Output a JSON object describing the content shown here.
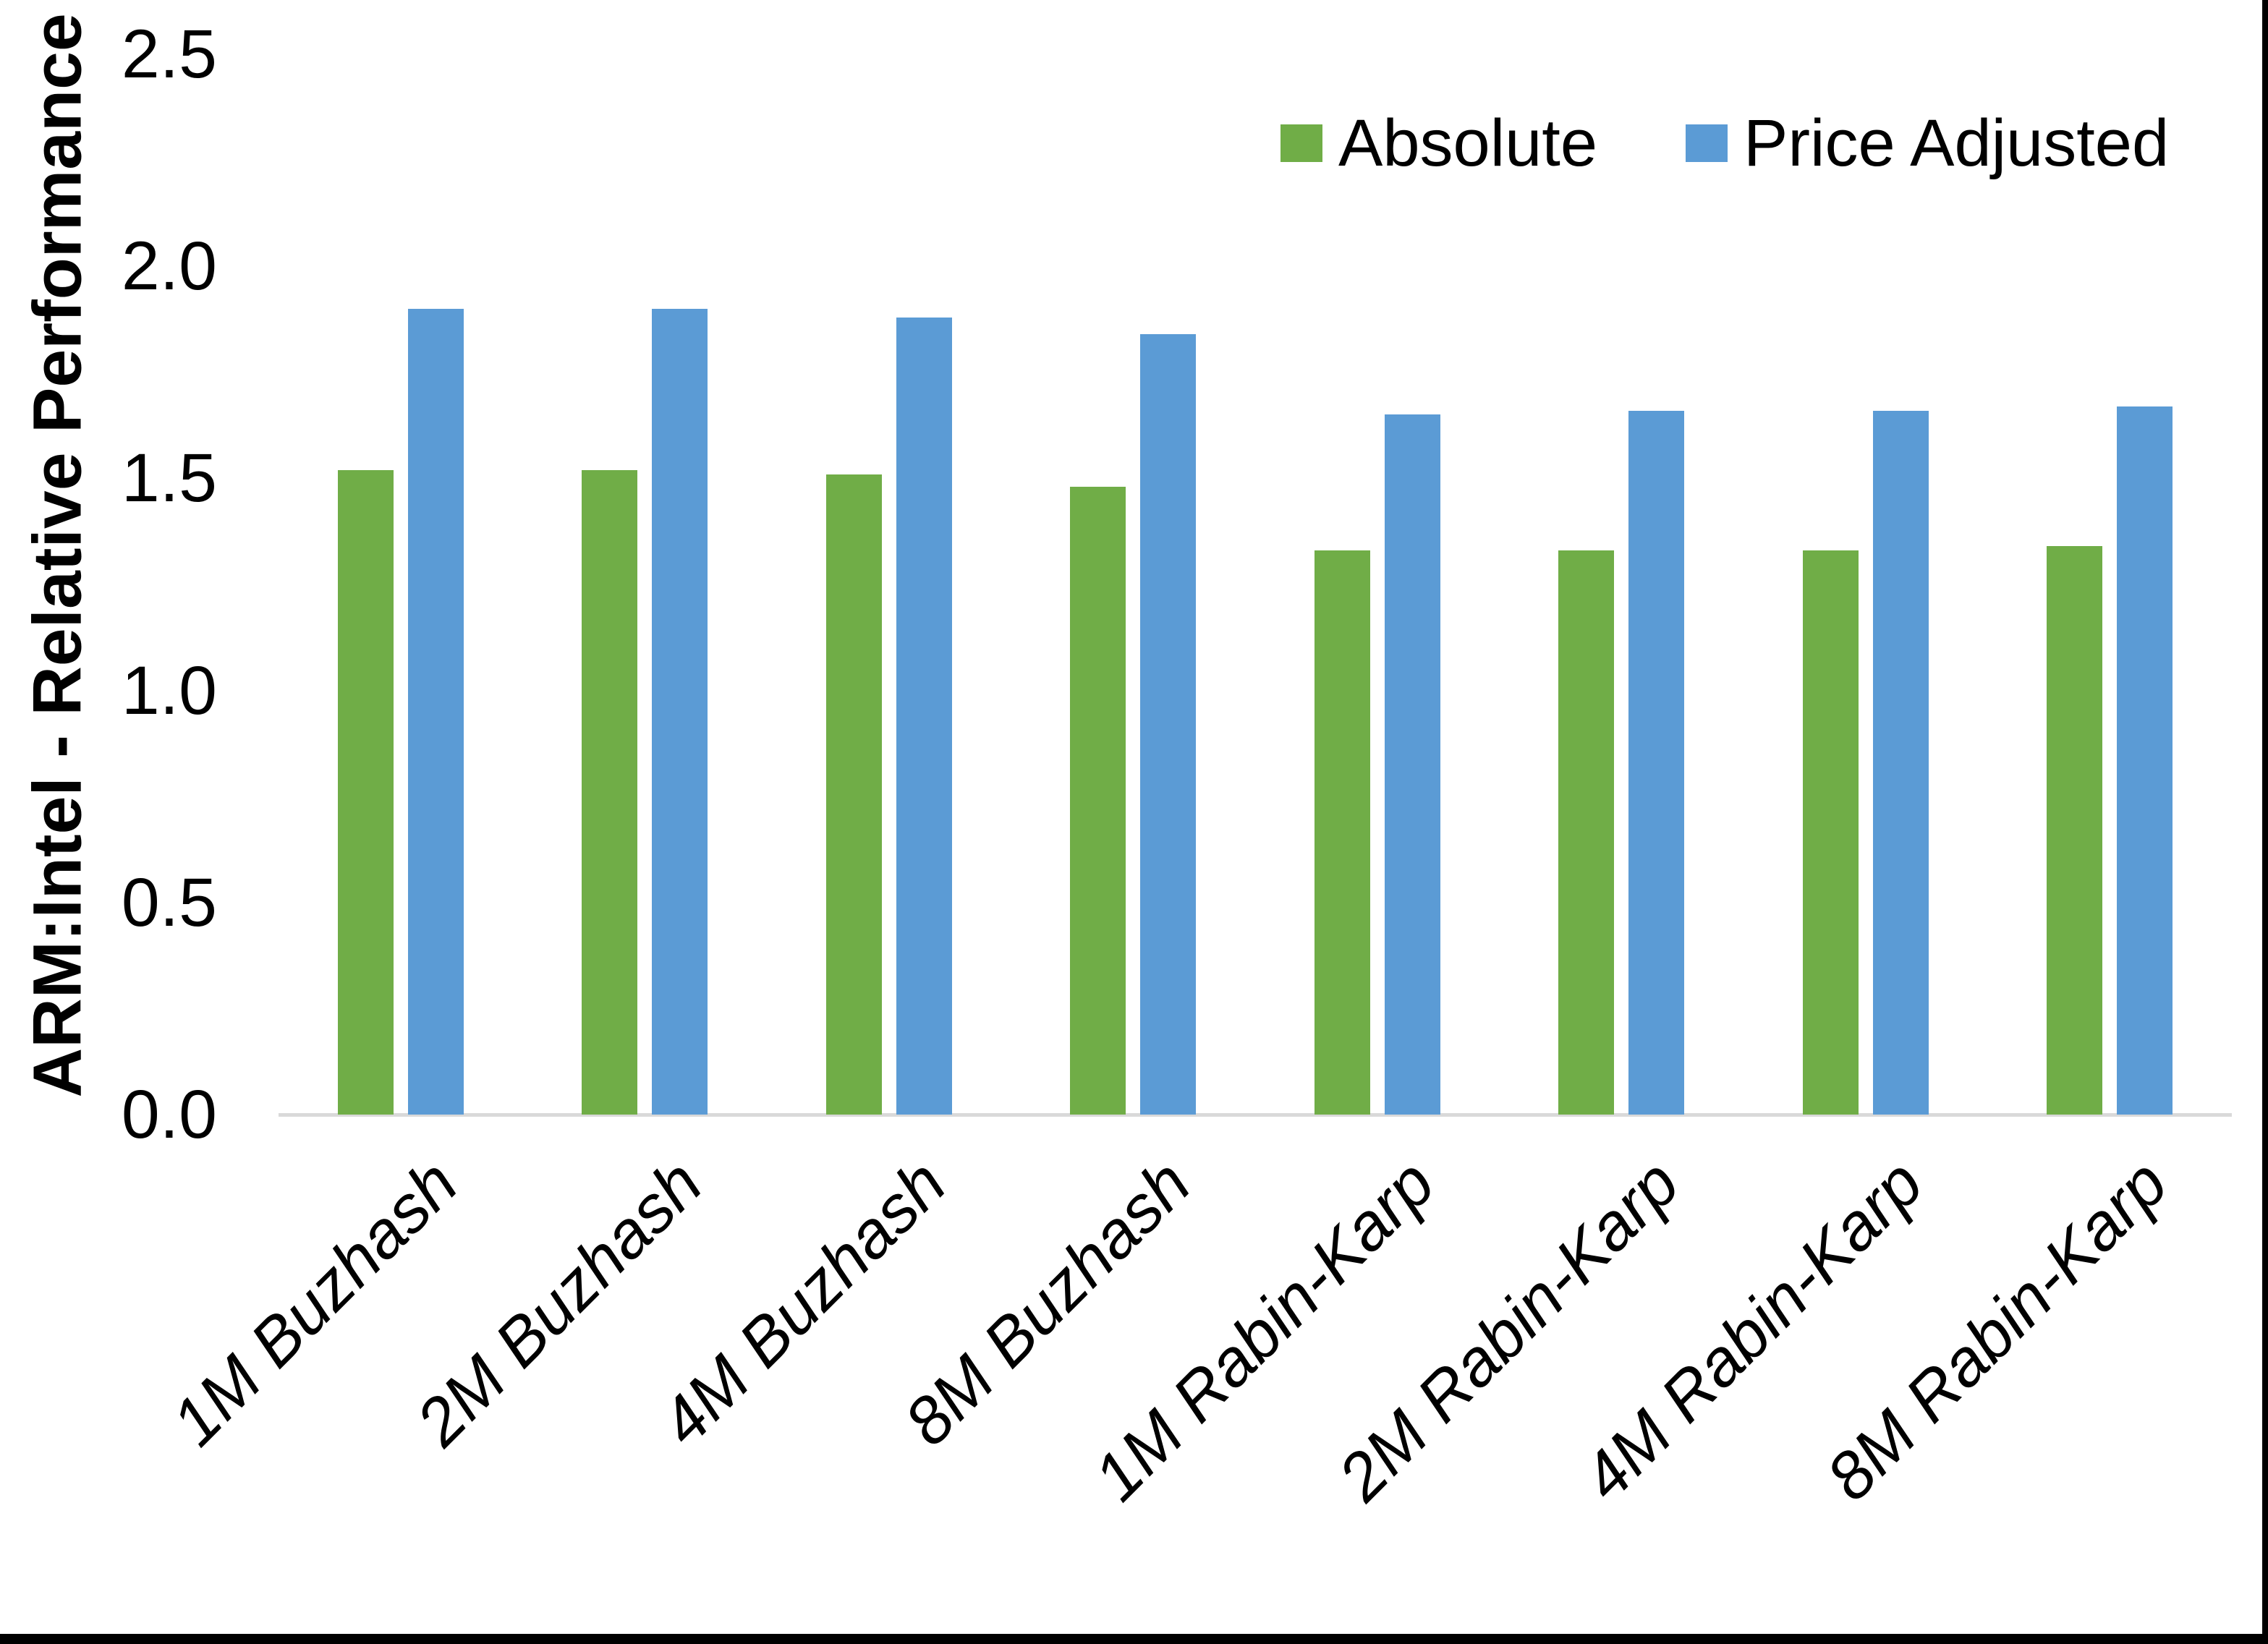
{
  "chart_data": {
    "type": "bar",
    "title": "",
    "ylabel": "ARM:Intel - Relative Performance",
    "xlabel": "",
    "ylim": [
      0,
      2.5
    ],
    "y_ticks": [
      "0.0",
      "0.5",
      "1.0",
      "1.5",
      "2.0",
      "2.5"
    ],
    "grid": false,
    "legend_position": "top-right",
    "categories": [
      "1M Buzhash",
      "2M Buzhash",
      "4M Buzhash",
      "8M Buzhash",
      "1M Rabin-Karp",
      "2M Rabin-Karp",
      "4M Rabin-Karp",
      "8M Rabin-Karp"
    ],
    "series": [
      {
        "name": "Absolute",
        "color": "#70AD47",
        "values": [
          1.52,
          1.52,
          1.51,
          1.48,
          1.33,
          1.33,
          1.33,
          1.34
        ]
      },
      {
        "name": "Price Adjusted",
        "color": "#5B9BD5",
        "values": [
          1.9,
          1.9,
          1.88,
          1.84,
          1.65,
          1.66,
          1.66,
          1.67
        ]
      }
    ]
  },
  "colors": {
    "absolute": "#70AD47",
    "price_adjusted": "#5B9BD5",
    "axis_line": "#D9D9D9",
    "frame": "#000000"
  }
}
